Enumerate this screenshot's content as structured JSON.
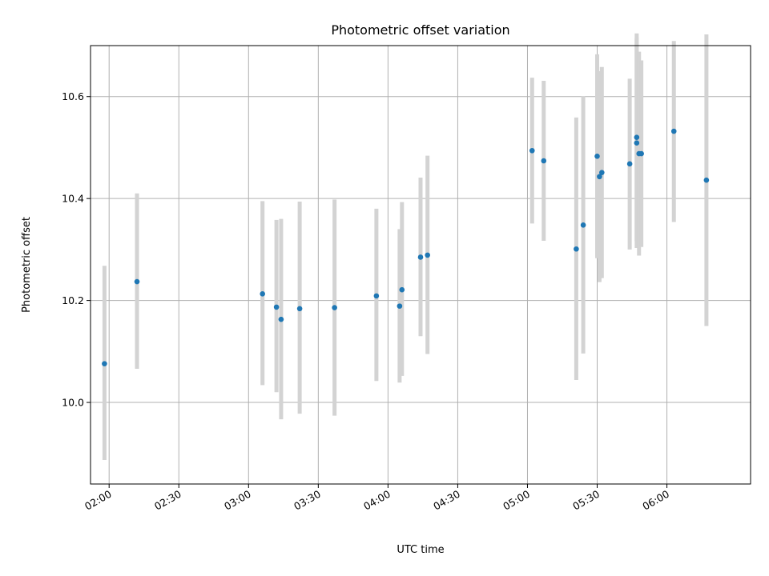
{
  "chart_data": {
    "type": "scatter",
    "title": "Photometric offset variation",
    "xlabel": "UTC time",
    "ylabel": "Photometric offset",
    "xlim": [
      "01:52",
      "06:36"
    ],
    "ylim": [
      9.84,
      10.7
    ],
    "x_ticks": [
      "02:00",
      "02:30",
      "03:00",
      "03:30",
      "04:00",
      "04:30",
      "05:00",
      "05:30",
      "06:00"
    ],
    "y_ticks": [
      "10.0",
      "10.2",
      "10.4",
      "10.6"
    ],
    "grid": true,
    "colors": {
      "point": "#1f77b4",
      "errorbar": "#d3d3d3"
    },
    "points": [
      {
        "x": "01:58",
        "y": 10.076,
        "ylow": 9.887,
        "yhigh": 10.268
      },
      {
        "x": "02:12",
        "y": 10.237,
        "ylow": 10.066,
        "yhigh": 10.41
      },
      {
        "x": "03:06",
        "y": 10.213,
        "ylow": 10.034,
        "yhigh": 10.395
      },
      {
        "x": "03:12",
        "y": 10.187,
        "ylow": 10.02,
        "yhigh": 10.358
      },
      {
        "x": "03:14",
        "y": 10.163,
        "ylow": 9.967,
        "yhigh": 10.36
      },
      {
        "x": "03:22",
        "y": 10.184,
        "ylow": 9.978,
        "yhigh": 10.394
      },
      {
        "x": "03:37",
        "y": 10.186,
        "ylow": 9.974,
        "yhigh": 10.398
      },
      {
        "x": "03:55",
        "y": 10.209,
        "ylow": 10.042,
        "yhigh": 10.38
      },
      {
        "x": "04:05",
        "y": 10.189,
        "ylow": 10.039,
        "yhigh": 10.34
      },
      {
        "x": "04:06",
        "y": 10.221,
        "ylow": 10.052,
        "yhigh": 10.393
      },
      {
        "x": "04:14",
        "y": 10.285,
        "ylow": 10.13,
        "yhigh": 10.441
      },
      {
        "x": "04:17",
        "y": 10.289,
        "ylow": 10.095,
        "yhigh": 10.484
      },
      {
        "x": "05:02",
        "y": 10.494,
        "ylow": 10.351,
        "yhigh": 10.637
      },
      {
        "x": "05:07",
        "y": 10.474,
        "ylow": 10.317,
        "yhigh": 10.631
      },
      {
        "x": "05:21",
        "y": 10.301,
        "ylow": 10.044,
        "yhigh": 10.559
      },
      {
        "x": "05:24",
        "y": 10.348,
        "ylow": 10.096,
        "yhigh": 10.601
      },
      {
        "x": "05:30",
        "y": 10.483,
        "ylow": 10.283,
        "yhigh": 10.683
      },
      {
        "x": "05:31",
        "y": 10.443,
        "ylow": 10.236,
        "yhigh": 10.65
      },
      {
        "x": "05:32",
        "y": 10.451,
        "ylow": 10.244,
        "yhigh": 10.658
      },
      {
        "x": "05:44",
        "y": 10.468,
        "ylow": 10.3,
        "yhigh": 10.635
      },
      {
        "x": "05:47",
        "y": 10.52,
        "ylow": 10.316,
        "yhigh": 10.724
      },
      {
        "x": "05:47",
        "y": 10.509,
        "ylow": 10.303,
        "yhigh": 10.715
      },
      {
        "x": "05:48",
        "y": 10.488,
        "ylow": 10.288,
        "yhigh": 10.688
      },
      {
        "x": "05:49",
        "y": 10.488,
        "ylow": 10.305,
        "yhigh": 10.671
      },
      {
        "x": "06:03",
        "y": 10.532,
        "ylow": 10.354,
        "yhigh": 10.709
      },
      {
        "x": "06:17",
        "y": 10.436,
        "ylow": 10.15,
        "yhigh": 10.722
      }
    ]
  }
}
